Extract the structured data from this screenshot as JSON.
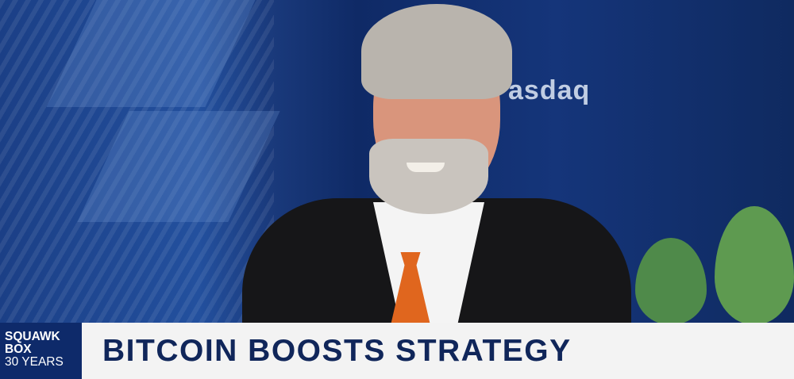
{
  "background": {
    "sign_text": "asdaq"
  },
  "lower_third": {
    "show_badge": [
      "SQUAWK",
      "BOX",
      "30 YEARS"
    ],
    "headline": "BITCOIN BOOSTS STRATEGY",
    "colors": {
      "badge": "#0e2a6a",
      "bar": "#f3f3f3",
      "headline_text": "#10265a",
      "tie": "#e0661e"
    }
  }
}
